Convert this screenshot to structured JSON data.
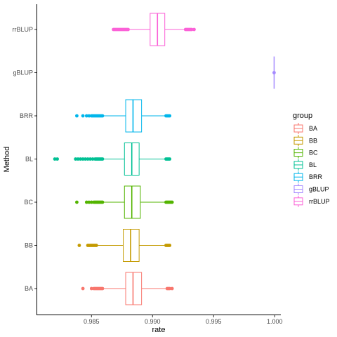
{
  "chart_data": {
    "type": "boxplot",
    "orientation": "horizontal",
    "xlabel": "rate",
    "ylabel": "Method",
    "xlim": [
      0.9805,
      1.0005
    ],
    "xticks": [
      0.985,
      0.99,
      0.995,
      1.0
    ],
    "xtick_labels": [
      "0.985",
      "0.990",
      "0.995",
      "1.000"
    ],
    "grid": false,
    "legend": {
      "title": "group",
      "placement": "right"
    },
    "categories": [
      "BA",
      "BB",
      "BC",
      "BL",
      "BRR",
      "gBLUP",
      "rrBLUP"
    ],
    "series": [
      {
        "name": "BA",
        "color": "#F8766D",
        "whisker_low": 0.986,
        "q1": 0.9878,
        "median": 0.9884,
        "q3": 0.9891,
        "whisker_high": 0.9911,
        "outliers": [
          0.9843,
          0.985,
          0.9852,
          0.9853,
          0.9854,
          0.9855,
          0.9856,
          0.9857,
          0.9858,
          0.9859,
          0.9912,
          0.9913,
          0.9914,
          0.9916
        ]
      },
      {
        "name": "BB",
        "color": "#C49A00",
        "whisker_low": 0.9855,
        "q1": 0.9876,
        "median": 0.9882,
        "q3": 0.9889,
        "whisker_high": 0.991,
        "outliers": [
          0.984,
          0.9847,
          0.9848,
          0.9849,
          0.985,
          0.9851,
          0.9852,
          0.9853,
          0.9854,
          0.9911,
          0.9912,
          0.9913,
          0.9914
        ]
      },
      {
        "name": "BC",
        "color": "#53B400",
        "whisker_low": 0.986,
        "q1": 0.9877,
        "median": 0.9883,
        "q3": 0.989,
        "whisker_high": 0.991,
        "outliers": [
          0.9838,
          0.9846,
          0.9848,
          0.985,
          0.9852,
          0.9853,
          0.9854,
          0.9855,
          0.9856,
          0.9857,
          0.9858,
          0.9859,
          0.9911,
          0.9912,
          0.9913,
          0.9914,
          0.9915,
          0.9916
        ]
      },
      {
        "name": "BL",
        "color": "#00C094",
        "whisker_low": 0.986,
        "q1": 0.9877,
        "median": 0.9883,
        "q3": 0.9889,
        "whisker_high": 0.991,
        "outliers": [
          0.982,
          0.9822,
          0.9837,
          0.9839,
          0.9841,
          0.9843,
          0.9845,
          0.9847,
          0.9849,
          0.9851,
          0.9853,
          0.9854,
          0.9855,
          0.9856,
          0.9857,
          0.9858,
          0.9859,
          0.9911,
          0.9912,
          0.9913,
          0.9914
        ]
      },
      {
        "name": "BRR",
        "color": "#00B6EB",
        "whisker_low": 0.986,
        "q1": 0.9878,
        "median": 0.9884,
        "q3": 0.9891,
        "whisker_high": 0.991,
        "outliers": [
          0.9838,
          0.9843,
          0.9846,
          0.9848,
          0.985,
          0.9851,
          0.9852,
          0.9853,
          0.9854,
          0.9855,
          0.9856,
          0.9857,
          0.9858,
          0.9859,
          0.9911,
          0.9912,
          0.9913,
          0.9914
        ]
      },
      {
        "name": "gBLUP",
        "color": "#A58AFF",
        "whisker_low": 0.99995,
        "q1": 0.99995,
        "median": 0.99995,
        "q3": 0.99995,
        "whisker_high": 0.99995,
        "outliers": [
          0.99995
        ]
      },
      {
        "name": "rrBLUP",
        "color": "#FB61D7",
        "whisker_low": 0.9881,
        "q1": 0.9898,
        "median": 0.9904,
        "q3": 0.991,
        "whisker_high": 0.9926,
        "outliers": [
          0.9868,
          0.9869,
          0.987,
          0.9871,
          0.9872,
          0.9873,
          0.9874,
          0.9875,
          0.9876,
          0.9877,
          0.9878,
          0.9879,
          0.988,
          0.9927,
          0.9928,
          0.9929,
          0.993,
          0.9931,
          0.9932,
          0.9934
        ]
      }
    ]
  }
}
